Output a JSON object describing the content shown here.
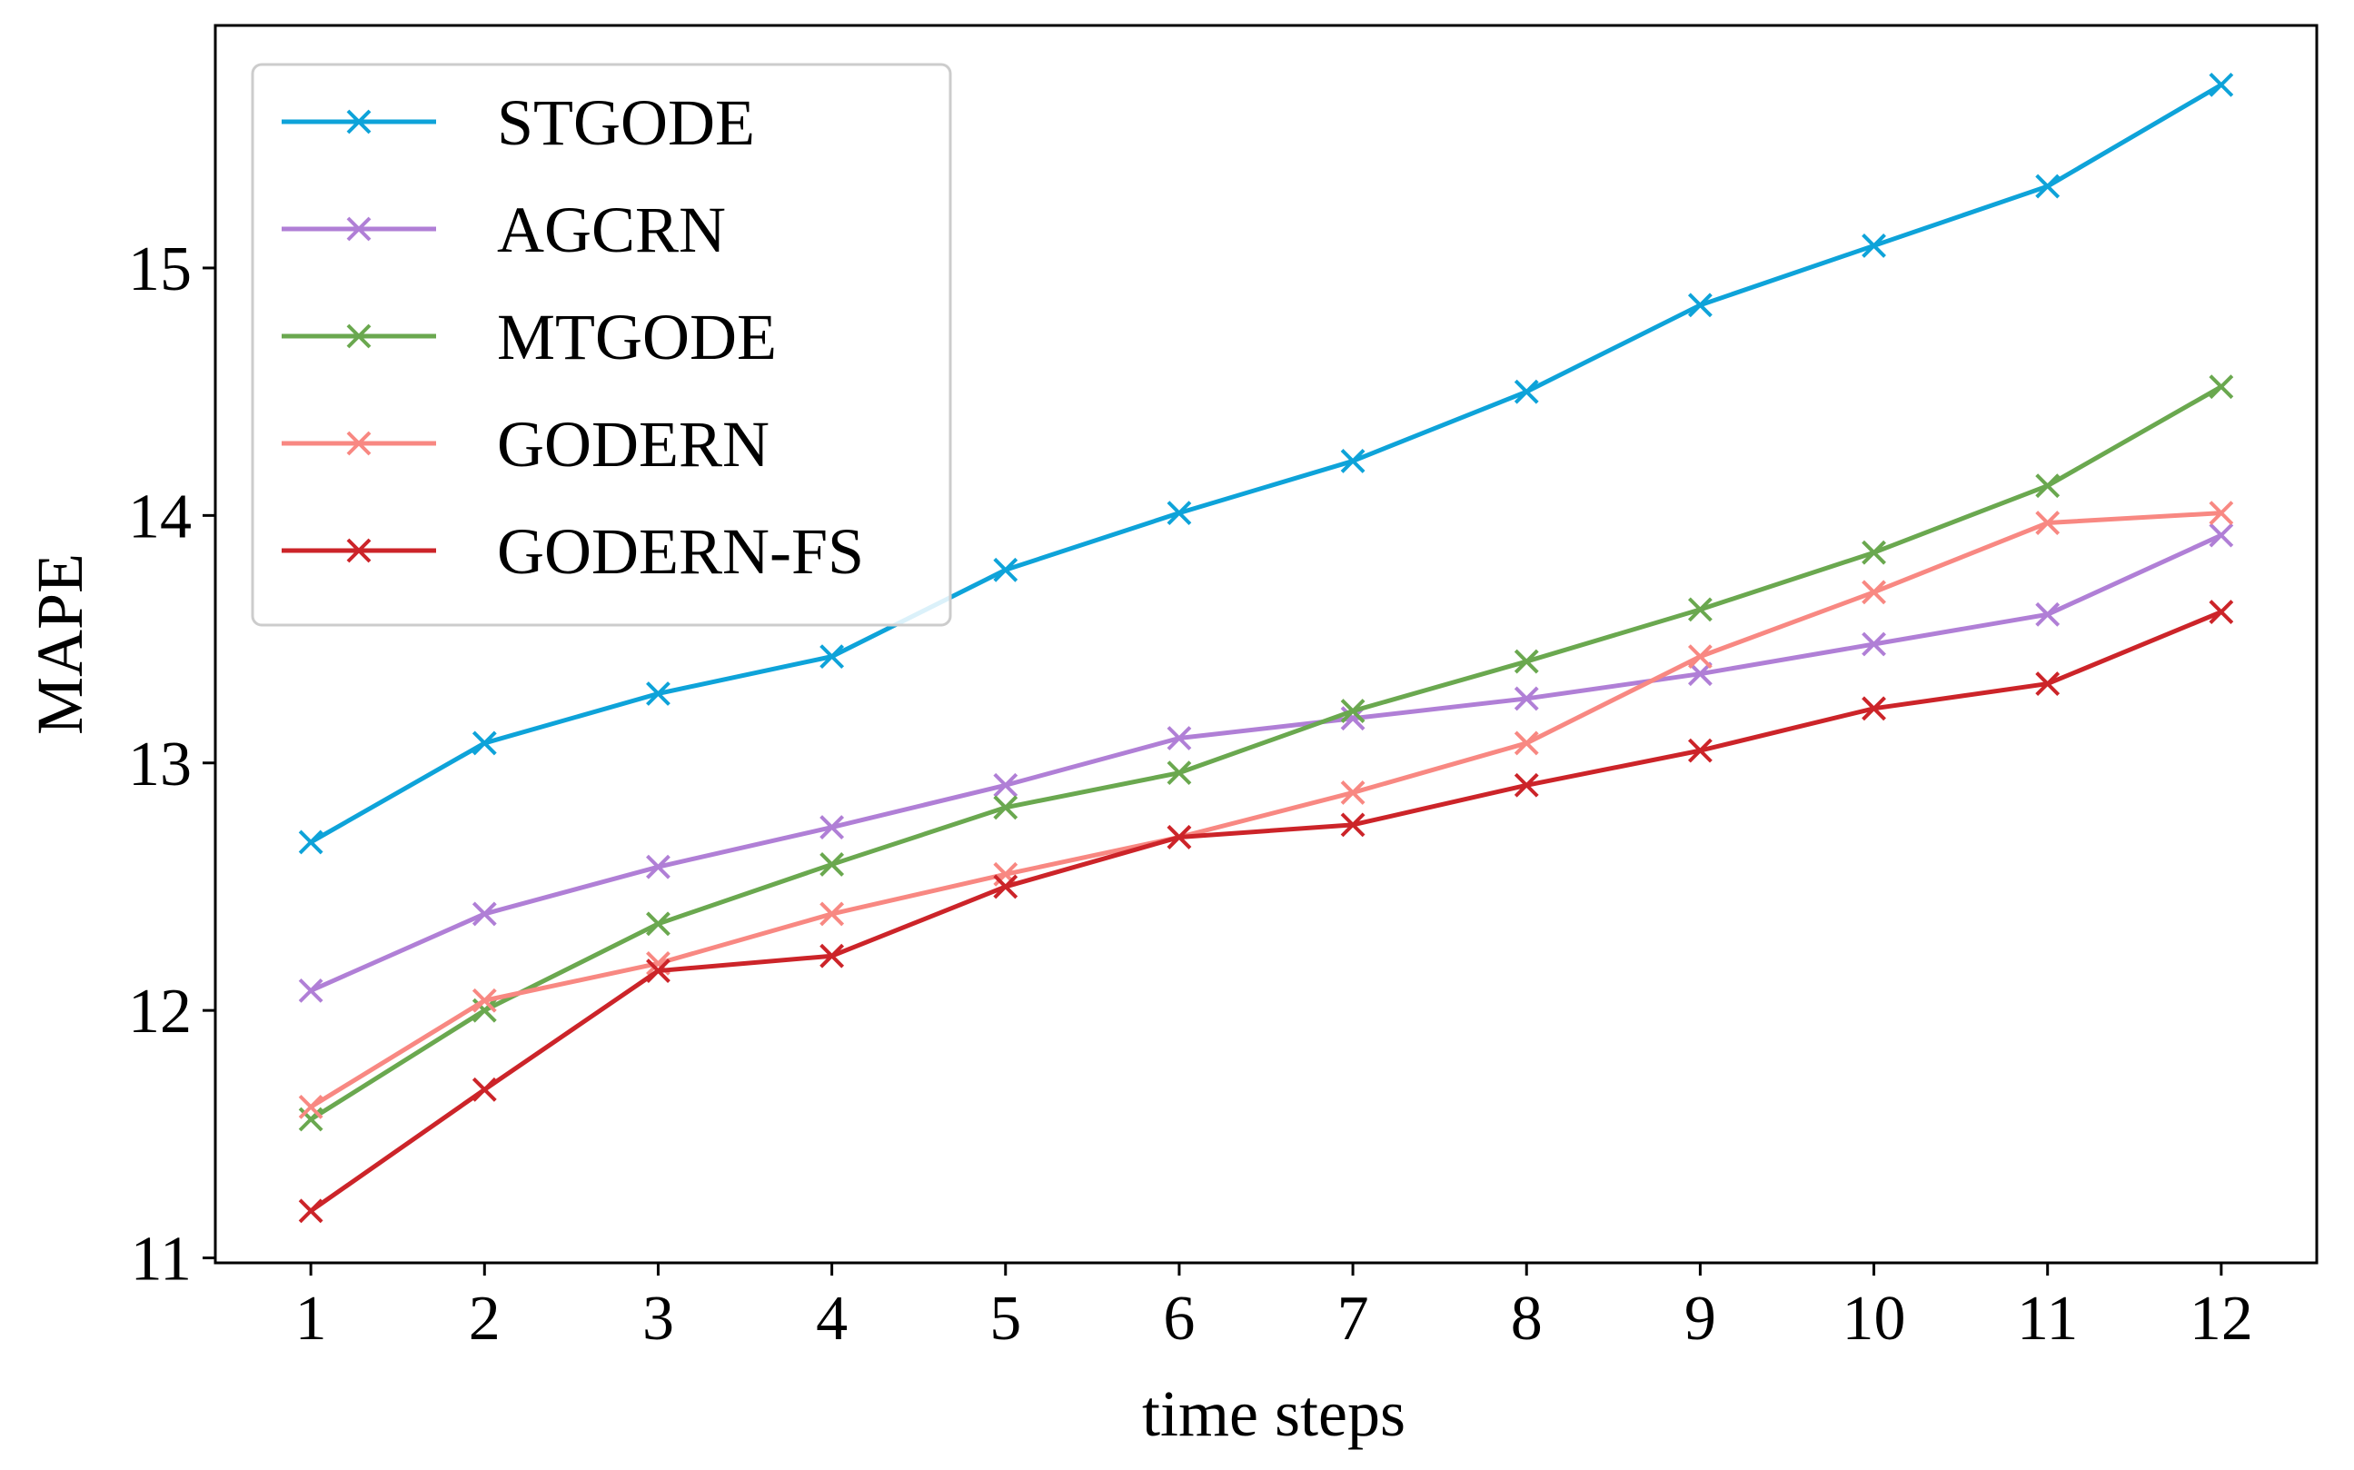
{
  "chart_data": {
    "type": "line",
    "xlabel": "time steps",
    "ylabel": "MAPE",
    "x": [
      1,
      2,
      3,
      4,
      5,
      6,
      7,
      8,
      9,
      10,
      11,
      12
    ],
    "xticks": [
      "1",
      "2",
      "3",
      "4",
      "5",
      "6",
      "7",
      "8",
      "9",
      "10",
      "11",
      "12"
    ],
    "xlim": [
      0.45,
      12.55
    ],
    "yticks": [
      "11",
      "12",
      "13",
      "14",
      "15"
    ],
    "ylim": [
      10.98,
      15.98
    ],
    "grid": false,
    "legend_position": "top-left",
    "marker": "x",
    "series": [
      {
        "name": "STGODE",
        "color": "#0ea3d9",
        "values": [
          12.68,
          13.08,
          13.28,
          13.43,
          13.78,
          14.01,
          14.22,
          14.5,
          14.85,
          15.09,
          15.33,
          15.74
        ]
      },
      {
        "name": "AGCRN",
        "color": "#b07fd6",
        "values": [
          12.08,
          12.39,
          12.58,
          12.74,
          12.91,
          13.1,
          13.18,
          13.26,
          13.36,
          13.48,
          13.6,
          13.92
        ]
      },
      {
        "name": "MTGODE",
        "color": "#6aa84f",
        "values": [
          11.56,
          12.0,
          12.35,
          12.59,
          12.82,
          12.96,
          13.21,
          13.41,
          13.62,
          13.85,
          14.12,
          14.52
        ]
      },
      {
        "name": "GODERN",
        "color": "#f88882",
        "values": [
          11.61,
          12.04,
          12.19,
          12.39,
          12.55,
          12.7,
          12.88,
          13.08,
          13.43,
          13.69,
          13.97,
          14.01
        ]
      },
      {
        "name": "GODERN-FS",
        "color": "#cc2429",
        "values": [
          11.19,
          11.68,
          12.16,
          12.22,
          12.5,
          12.7,
          12.75,
          12.91,
          13.05,
          13.22,
          13.32,
          13.61
        ]
      }
    ]
  }
}
